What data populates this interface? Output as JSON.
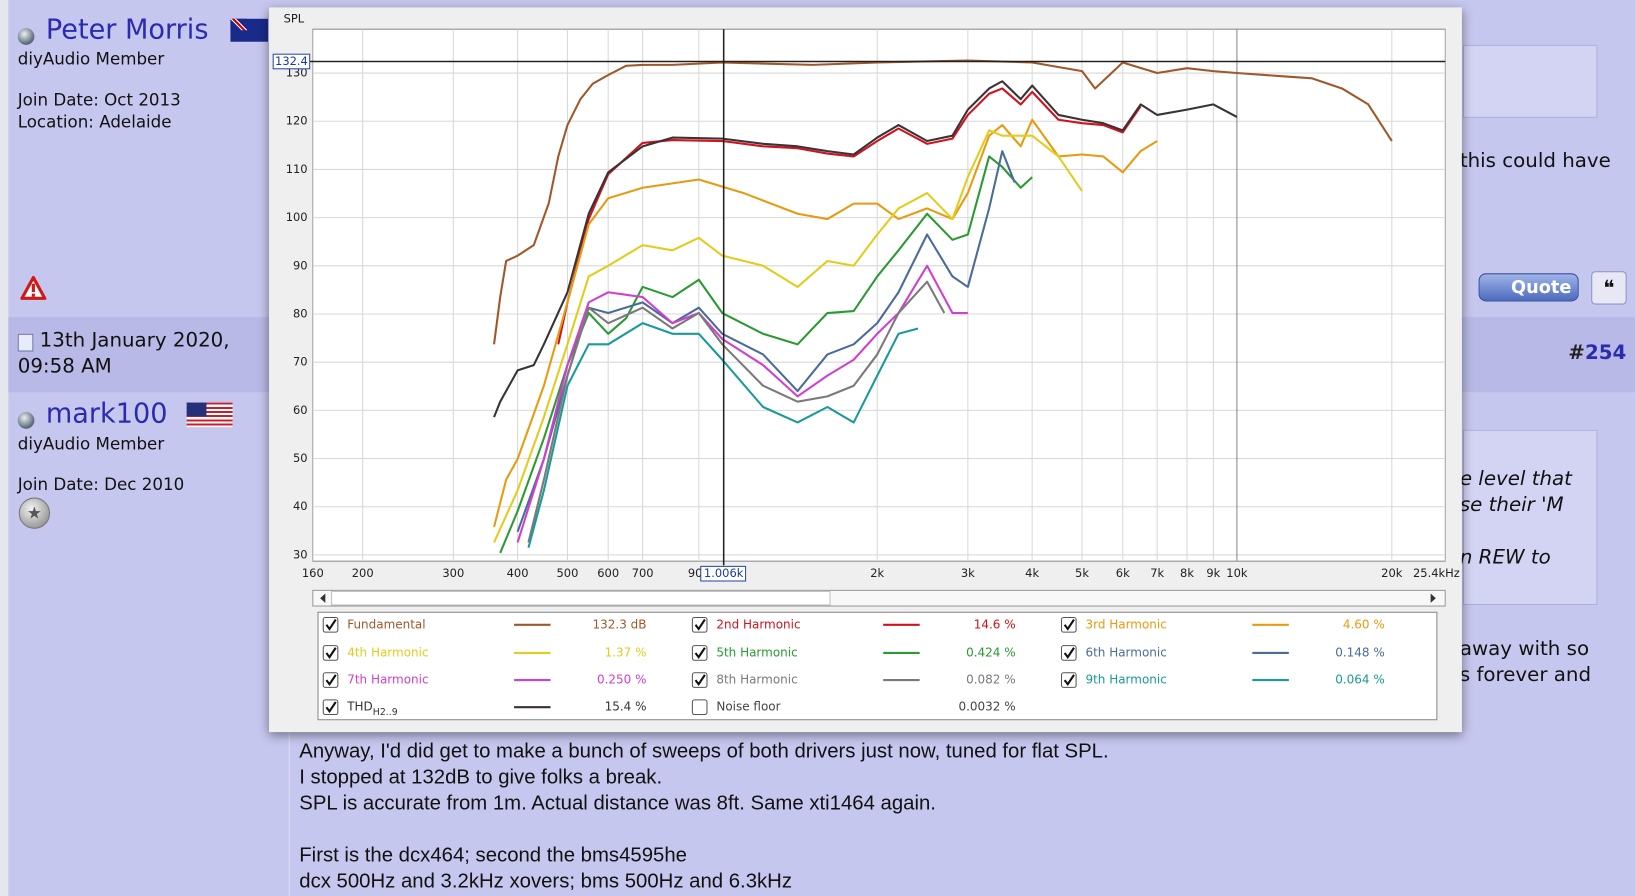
{
  "forum": {
    "posts": [
      {
        "author": "Peter Morris",
        "rank": "diyAudio Member",
        "join_date": "Join Date: Oct 2013",
        "location": "Location: Adelaide"
      },
      {
        "author": "mark100",
        "rank": "diyAudio Member",
        "join_date": "Join Date: Dec 2010"
      }
    ],
    "post_date": "13th January 2020,",
    "post_time": "09:58 AM",
    "post_hash": "#",
    "post_number": "254",
    "quote_button": "Quote",
    "side_fragments": [
      "this could have",
      "e level that",
      "se their 'M",
      "n REW to",
      "away with so",
      "s forever and"
    ],
    "body_lines": [
      "Anyway, I'd did get to make a bunch of sweeps of both drivers just now, tuned for flat SPL.",
      "I stopped at 132dB to give folks a break.",
      "SPL is accurate from 1m. Actual distance was 8ft. Same xti1464 again.",
      "First is the dcx464; second the bms4595he",
      "dcx 500Hz and 3.2kHz xovers; bms 500Hz and 6.3kHz"
    ]
  },
  "chart_data": {
    "type": "line",
    "y_axis_label": "SPL",
    "xscale": "log",
    "xlim": [
      160,
      25400
    ],
    "ylim": [
      28.7,
      139.1
    ],
    "grid": true,
    "xticks": [
      160,
      200,
      300,
      400,
      500,
      600,
      700,
      900,
      {
        "value": 2000,
        "label": "2k"
      },
      {
        "value": 3000,
        "label": "3k"
      },
      {
        "value": 4000,
        "label": "4k"
      },
      {
        "value": 5000,
        "label": "5k"
      },
      {
        "value": 6000,
        "label": "6k"
      },
      {
        "value": 7000,
        "label": "7k"
      },
      {
        "value": 8000,
        "label": "8k"
      },
      {
        "value": 9000,
        "label": "9k"
      },
      {
        "value": 10000,
        "label": "10k"
      },
      {
        "value": 20000,
        "label": "20k"
      },
      {
        "value": 25400,
        "label": "25.4kHz"
      }
    ],
    "yticks": [
      30,
      40,
      50,
      60,
      70,
      80,
      90,
      100,
      110,
      120,
      130
    ],
    "cursor": {
      "x": {
        "value": 1006,
        "label": "1.006k"
      },
      "y": 132.4
    },
    "series": [
      {
        "name": "Fundamental",
        "color": "#a0582a",
        "checked": true,
        "readout": "132.3 dB",
        "x": [
          360,
          370,
          380,
          400,
          430,
          460,
          480,
          500,
          530,
          560,
          600,
          650,
          700,
          800,
          1000,
          1500,
          2000,
          3000,
          4000,
          5000,
          5300,
          6000,
          7000,
          8000,
          9000,
          10000,
          12000,
          14000,
          16000,
          18000,
          20000
        ],
        "values": [
          73.7,
          83.5,
          91,
          92.1,
          94.3,
          103,
          112.7,
          119.2,
          124.6,
          127.8,
          129.6,
          131.5,
          131.7,
          131.7,
          132.2,
          131.7,
          132.2,
          132.6,
          132.2,
          130.4,
          126.8,
          132.2,
          130,
          131,
          130.4,
          130,
          129.4,
          128.9,
          126.8,
          123.5,
          115.9
        ]
      },
      {
        "name": "2nd Harmonic",
        "color": "#d0121c",
        "checked": true,
        "readout": "14.6 %",
        "x": [
          480,
          500,
          550,
          600,
          700,
          800,
          1000,
          1200,
          1400,
          1600,
          1800,
          2000,
          2200,
          2500,
          2800,
          3000,
          3300,
          3500,
          3800,
          4000,
          4500,
          5000,
          5500,
          6000,
          6500
        ],
        "values": [
          73.7,
          82.4,
          99.7,
          109,
          115.5,
          116.1,
          115.9,
          114.8,
          114.4,
          113.3,
          112.7,
          115.9,
          118.5,
          115.3,
          116.4,
          121.3,
          125.7,
          126.8,
          123.5,
          126.1,
          120.3,
          119.6,
          119.2,
          117.7,
          123.1
        ]
      },
      {
        "name": "3rd Harmonic",
        "color": "#e89a10",
        "checked": true,
        "readout": "4.60 %",
        "x": [
          360,
          380,
          400,
          450,
          500,
          550,
          600,
          700,
          900,
          1100,
          1400,
          1600,
          1800,
          2000,
          2200,
          2500,
          2800,
          3000,
          3300,
          3500,
          3800,
          4000,
          4500,
          5000,
          5500,
          6000,
          6500,
          7000
        ],
        "values": [
          35.8,
          45.6,
          49.9,
          65.1,
          82.4,
          98.6,
          104,
          106.2,
          107.9,
          105.1,
          100.8,
          99.7,
          102.9,
          102.9,
          99.7,
          101.9,
          99.7,
          105.1,
          117,
          119.2,
          114.8,
          120.3,
          112.7,
          113.1,
          112.7,
          109.4,
          113.8,
          115.9
        ]
      },
      {
        "name": "4th Harmonic",
        "color": "#e2cc1c",
        "checked": true,
        "readout": "1.37 %",
        "x": [
          360,
          400,
          450,
          500,
          550,
          600,
          700,
          800,
          900,
          1000,
          1200,
          1400,
          1600,
          1800,
          2000,
          2200,
          2500,
          2800,
          3000,
          3300,
          3500,
          4000,
          4500,
          5000
        ],
        "values": [
          32.6,
          43.4,
          58.6,
          73.7,
          87.8,
          90,
          94.3,
          93.2,
          95.8,
          92.1,
          90,
          85.6,
          91,
          90,
          96.5,
          101.9,
          105.1,
          99.7,
          108.4,
          118.1,
          117,
          117,
          112.7,
          105.5
        ]
      },
      {
        "name": "5th Harmonic",
        "color": "#2a9a32",
        "checked": true,
        "readout": "0.424 %",
        "x": [
          370,
          400,
          450,
          500,
          550,
          600,
          650,
          700,
          800,
          900,
          1000,
          1200,
          1400,
          1600,
          1800,
          2000,
          2200,
          2500,
          2800,
          3000,
          3300,
          3500,
          3800,
          4000
        ],
        "values": [
          30.4,
          39.1,
          54.2,
          69.4,
          80.2,
          75.9,
          79.1,
          85.6,
          83.5,
          87.1,
          80.2,
          75.9,
          73.7,
          80.2,
          80.6,
          87.8,
          93.2,
          100.8,
          95.4,
          96.5,
          112.7,
          110.5,
          106.2,
          108.4
        ]
      },
      {
        "name": "6th Harmonic",
        "color": "#4a6c9a",
        "checked": true,
        "readout": "0.148 %",
        "x": [
          400,
          450,
          500,
          550,
          600,
          700,
          800,
          900,
          1000,
          1200,
          1400,
          1600,
          1800,
          2000,
          2200,
          2500,
          2800,
          3000,
          3300,
          3500,
          3700
        ],
        "values": [
          34.8,
          49.9,
          67.2,
          81.3,
          80.2,
          82.4,
          78.1,
          81.3,
          75.9,
          71.6,
          64,
          71.6,
          73.7,
          78.1,
          84.5,
          96.5,
          87.8,
          85.6,
          101.9,
          113.8,
          107.3
        ]
      },
      {
        "name": "7th Harmonic",
        "color": "#d040d0",
        "checked": true,
        "readout": "0.250 %",
        "x": [
          400,
          450,
          500,
          550,
          600,
          700,
          800,
          900,
          1000,
          1200,
          1400,
          1600,
          1800,
          2000,
          2200,
          2500,
          2800,
          3000
        ],
        "values": [
          32.6,
          49.9,
          69.4,
          82.4,
          84.5,
          83.5,
          78.1,
          80.2,
          74.8,
          69.4,
          62.9,
          67.2,
          70.5,
          75.9,
          80.2,
          90,
          80.2,
          80.2
        ]
      },
      {
        "name": "8th Harmonic",
        "color": "#7a7a7a",
        "checked": true,
        "readout": "0.082 %",
        "x": [
          420,
          450,
          500,
          550,
          600,
          700,
          800,
          900,
          1000,
          1200,
          1400,
          1600,
          1800,
          2000,
          2200,
          2500,
          2700
        ],
        "values": [
          32.6,
          45.6,
          67.2,
          81.3,
          78.1,
          81.3,
          77,
          80.2,
          73.7,
          65.1,
          61.8,
          62.9,
          65.1,
          71.6,
          80.2,
          86.7,
          80.2
        ]
      },
      {
        "name": "9th Harmonic",
        "color": "#1a9a9a",
        "checked": true,
        "readout": "0.064 %",
        "x": [
          420,
          450,
          500,
          550,
          600,
          700,
          800,
          900,
          1000,
          1200,
          1400,
          1600,
          1800,
          2000,
          2200,
          2400
        ],
        "values": [
          31.5,
          43.4,
          65.1,
          73.7,
          73.7,
          78.1,
          75.9,
          75.9,
          70.5,
          60.7,
          57.5,
          60.7,
          57.5,
          67.2,
          75.9,
          77
        ]
      },
      {
        "name": "THD",
        "subscript": "H2..9",
        "color": "#3a3236",
        "checked": true,
        "readout": "15.4 %",
        "x": [
          360,
          370,
          400,
          430,
          450,
          500,
          550,
          600,
          700,
          800,
          1000,
          1200,
          1400,
          1600,
          1800,
          2000,
          2200,
          2500,
          2800,
          3000,
          3300,
          3500,
          3800,
          4000,
          4500,
          5000,
          5500,
          6000,
          6500,
          7000,
          8000,
          9000,
          10000
        ],
        "values": [
          58.6,
          61.8,
          68.3,
          69.4,
          73.7,
          84.5,
          100.8,
          109.4,
          114.8,
          116.6,
          116.4,
          115.3,
          114.8,
          113.8,
          113.1,
          116.6,
          119.2,
          115.9,
          117,
          122.4,
          126.8,
          128.3,
          124.6,
          127.4,
          121.3,
          120.3,
          119.6,
          118.1,
          123.5,
          121.3,
          122.4,
          123.5,
          120.9
        ]
      },
      {
        "name": "Noise floor",
        "color": "#444444",
        "checked": false,
        "readout": "0.0032 %"
      }
    ]
  }
}
